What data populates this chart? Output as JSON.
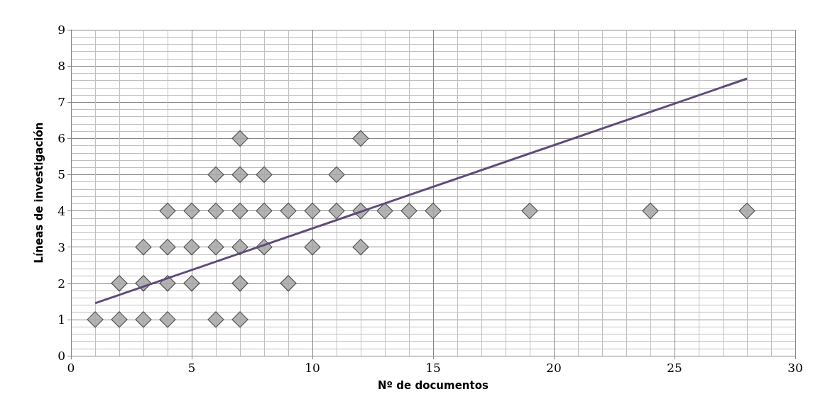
{
  "chart_data": {
    "type": "scatter",
    "xlabel": "Nº de documentos",
    "ylabel": "Líneas de investigación",
    "xlim": [
      0,
      30
    ],
    "xticks": [
      0,
      5,
      10,
      15,
      20,
      25,
      30
    ],
    "ylim": [
      0,
      9
    ],
    "yticks": [
      0,
      1,
      2,
      3,
      4,
      5,
      6,
      7,
      8,
      9
    ],
    "grid": true,
    "marker": "diamond",
    "series": [
      {
        "color": "#a6a6a6",
        "x": [
          1,
          2,
          3,
          4,
          6,
          7,
          2,
          3,
          4,
          5,
          7,
          9,
          3,
          4,
          5,
          6,
          7,
          8,
          10,
          12,
          4,
          5,
          6,
          7,
          8,
          9,
          10,
          11,
          12,
          13,
          14,
          15,
          19,
          24,
          28,
          6,
          7,
          8,
          11,
          7,
          12
        ],
        "values": [
          1,
          1,
          1,
          1,
          1,
          1,
          2,
          2,
          2,
          2,
          2,
          2,
          3,
          3,
          3,
          3,
          3,
          3,
          3,
          3,
          4,
          4,
          4,
          4,
          4,
          4,
          4,
          4,
          4,
          4,
          4,
          4,
          4,
          4,
          4,
          5,
          5,
          5,
          5,
          6,
          6
        ]
      },
      {
        "type": "line",
        "color": "#604a7b",
        "marker": "none",
        "line_style": "solid",
        "x": [
          1,
          28
        ],
        "values": [
          1.45,
          7.65
        ]
      }
    ]
  }
}
